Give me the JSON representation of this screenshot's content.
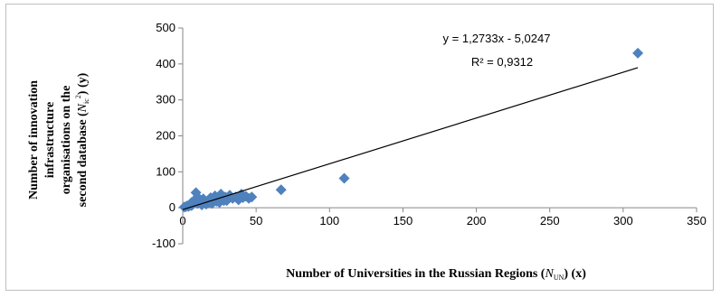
{
  "chart_data": {
    "type": "scatter",
    "xlabel": "Number  of Universities  in the Russian Regions (",
    "xlabel_symbol": "N",
    "xlabel_sub": "UN",
    "xlabel_tail": ") (x)",
    "ylabel_lines": [
      "Number  of innovation",
      "infrastructure",
      "organisations  on the",
      "second database  ("
    ],
    "ylabel_symbol": "N",
    "ylabel_sub": "ic",
    "ylabel_sup": "2",
    "ylabel_tail": ") (y)",
    "xlim": [
      0,
      350
    ],
    "ylim": [
      -100,
      500
    ],
    "x_ticks": [
      0,
      50,
      100,
      150,
      200,
      250,
      300,
      350
    ],
    "y_ticks": [
      -100,
      0,
      100,
      200,
      300,
      400,
      500
    ],
    "grid": false,
    "marker_color": "#4f81bd",
    "trendline": {
      "slope": 1.2733,
      "intercept": -5.0247,
      "x_range": [
        0,
        310
      ],
      "equation": "y = 1,2733x - 5,0247",
      "r2_label": "R² = 0,9312"
    },
    "points": [
      [
        1,
        2
      ],
      [
        2,
        3
      ],
      [
        3,
        5
      ],
      [
        4,
        4
      ],
      [
        5,
        8
      ],
      [
        6,
        6
      ],
      [
        6,
        15
      ],
      [
        7,
        10
      ],
      [
        8,
        20
      ],
      [
        9,
        42
      ],
      [
        10,
        30
      ],
      [
        10,
        12
      ],
      [
        11,
        18
      ],
      [
        12,
        22
      ],
      [
        13,
        8
      ],
      [
        14,
        25
      ],
      [
        15,
        16
      ],
      [
        16,
        10
      ],
      [
        17,
        20
      ],
      [
        18,
        14
      ],
      [
        19,
        28
      ],
      [
        20,
        12
      ],
      [
        21,
        22
      ],
      [
        22,
        33
      ],
      [
        23,
        18
      ],
      [
        24,
        26
      ],
      [
        25,
        15
      ],
      [
        26,
        38
      ],
      [
        27,
        24
      ],
      [
        28,
        20
      ],
      [
        29,
        30
      ],
      [
        30,
        20
      ],
      [
        32,
        35
      ],
      [
        34,
        26
      ],
      [
        36,
        30
      ],
      [
        38,
        22
      ],
      [
        40,
        38
      ],
      [
        41,
        28
      ],
      [
        43,
        32
      ],
      [
        45,
        26
      ],
      [
        47,
        30
      ],
      [
        67,
        50
      ],
      [
        110,
        82
      ],
      [
        310,
        430
      ]
    ]
  }
}
